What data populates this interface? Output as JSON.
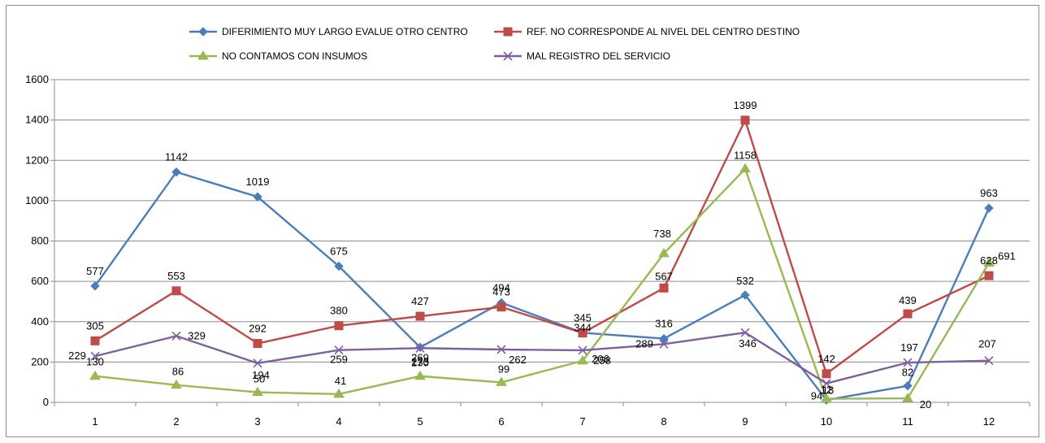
{
  "chart_data": {
    "type": "line",
    "title": "",
    "xlabel": "",
    "ylabel": "",
    "categories": [
      "1",
      "2",
      "3",
      "4",
      "5",
      "6",
      "7",
      "8",
      "9",
      "10",
      "11",
      "12"
    ],
    "ylim": [
      0,
      1600
    ],
    "yticks": [
      "0",
      "200",
      "400",
      "600",
      "800",
      "1000",
      "1200",
      "1400",
      "1600"
    ],
    "grid": true,
    "legend_position": "top",
    "series": [
      {
        "name": "DIFERIMIENTO  MUY LARGO EVALUE  OTRO CENTRO",
        "color": "#4a7ebb",
        "marker": "diamond",
        "values": [
          577,
          1142,
          1019,
          675,
          273,
          494,
          345,
          316,
          532,
          12,
          82,
          963
        ]
      },
      {
        "name": "REF. NO CORRESPONDE  AL NIVEL  DEL CENTRO  DESTINO",
        "color": "#be4b48",
        "marker": "square",
        "values": [
          305,
          553,
          292,
          380,
          427,
          473,
          344,
          567,
          1399,
          142,
          439,
          628
        ]
      },
      {
        "name": "NO CONTAMOS  CON INSUMOS",
        "color": "#98b954",
        "marker": "triangle",
        "values": [
          130,
          86,
          50,
          41,
          130,
          99,
          206,
          738,
          1158,
          18,
          20,
          691
        ]
      },
      {
        "name": "MAL REGISTRO  DEL SERVICIO",
        "color": "#7d60a0",
        "marker": "x",
        "values": [
          229,
          329,
          194,
          259,
          269,
          262,
          258,
          289,
          346,
          94,
          197,
          207
        ]
      }
    ],
    "labels": [
      [
        "577",
        "1142",
        "1019",
        "675",
        "273",
        "494",
        "345",
        "316",
        "532",
        "12",
        "82",
        "963"
      ],
      [
        "305",
        "553",
        "292",
        "380",
        "427",
        "473",
        "344",
        "567",
        "1399",
        "142",
        "439",
        "628"
      ],
      [
        "130",
        "86",
        "50",
        "41",
        "130",
        "99",
        "206",
        "738",
        "1158",
        "18",
        "20",
        "691"
      ],
      [
        "229",
        "329",
        "194",
        "259",
        "269",
        "262",
        "258",
        "289",
        "346",
        "94",
        "197",
        "207"
      ]
    ]
  }
}
